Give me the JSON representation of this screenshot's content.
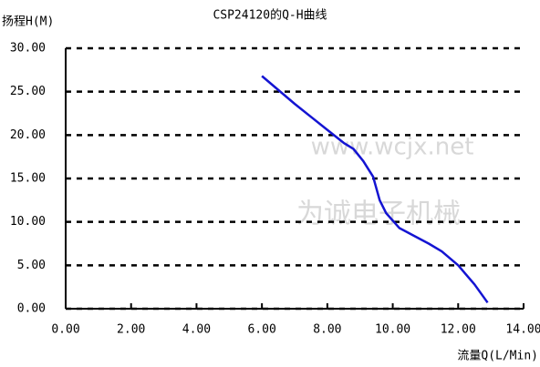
{
  "chart_data": {
    "type": "line",
    "title": "CSP24120的Q-H曲线",
    "y_label": "扬程H(M)",
    "x_label": "流量Q(L/Min)",
    "annotations": [
      "www.wcjx.net",
      "为诚电子机械"
    ],
    "x": [
      6,
      6.5,
      7,
      7.5,
      8,
      8.5,
      8.8,
      9.1,
      9.4,
      9.6,
      9.8,
      10.2,
      10.6,
      11.1,
      11.5,
      12,
      12.5,
      12.9
    ],
    "series": [
      {
        "color": "#1414d2",
        "values": [
          26.8,
          25.2,
          23.6,
          22.1,
          20.6,
          19.1,
          18.4,
          17.0,
          15.2,
          12.5,
          11.0,
          9.3,
          8.5,
          7.5,
          6.6,
          5.0,
          2.8,
          0.7
        ]
      }
    ],
    "xlim": [
      0,
      14
    ],
    "ylim": [
      0,
      30
    ],
    "xticks": [
      {
        "value": 0,
        "label": "0.00"
      },
      {
        "value": 2,
        "label": "2.00"
      },
      {
        "value": 4,
        "label": "4.00"
      },
      {
        "value": 6,
        "label": "6.00"
      },
      {
        "value": 8,
        "label": "8.00"
      },
      {
        "value": 10,
        "label": "10.00"
      },
      {
        "value": 12,
        "label": "12.00"
      },
      {
        "value": 14,
        "label": "14.00"
      }
    ],
    "yticks": [
      {
        "value": 0,
        "label": "0.00"
      },
      {
        "value": 5,
        "label": "5.00"
      },
      {
        "value": 10,
        "label": "10.00"
      },
      {
        "value": 15,
        "label": "15.00"
      },
      {
        "value": 20,
        "label": "20.00"
      },
      {
        "value": 25,
        "label": "25.00"
      },
      {
        "value": 30,
        "label": "30.00"
      }
    ],
    "grid": true
  }
}
